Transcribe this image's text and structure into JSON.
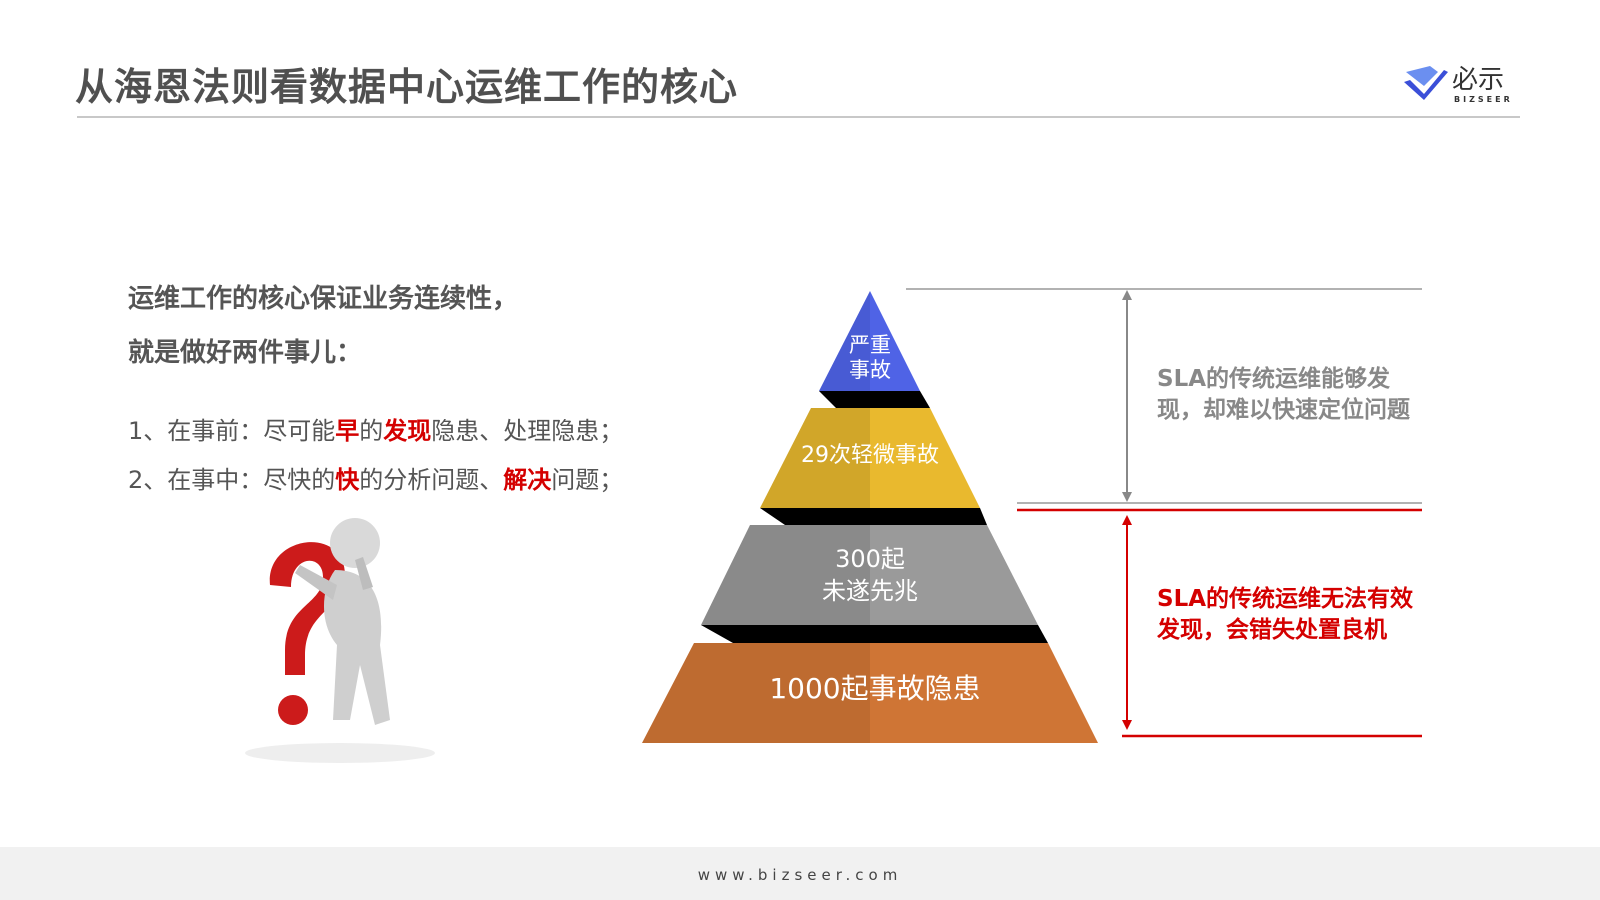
{
  "header": {
    "title": "从海恩法则看数据中心运维工作的核心",
    "logo_text": "必示",
    "logo_sub": "BIZSEER"
  },
  "left": {
    "lead_lines": [
      "运维工作的核心保证业务连续性，",
      "就是做好两件事儿："
    ],
    "items": [
      [
        {
          "t": "1、在事前：尽可能",
          "h": false
        },
        {
          "t": "早",
          "h": true
        },
        {
          "t": "的",
          "h": false
        },
        {
          "t": "发现",
          "h": true
        },
        {
          "t": "隐患、处理隐患；",
          "h": false
        }
      ],
      [
        {
          "t": "2、在事中：尽快的",
          "h": false
        },
        {
          "t": "快",
          "h": true
        },
        {
          "t": "的分析问题、",
          "h": false
        },
        {
          "t": "解决",
          "h": true
        },
        {
          "t": "问题；",
          "h": false
        }
      ]
    ]
  },
  "pyramid": {
    "tiers": [
      {
        "lines": [
          "严重",
          "事故"
        ],
        "color": "#4f63e6"
      },
      {
        "lines": [
          "29次轻微事故"
        ],
        "color": "#e9b92e"
      },
      {
        "lines": [
          "300起",
          "未遂先兆"
        ],
        "color": "#9a9a9a"
      },
      {
        "lines": [
          "1000起事故隐患"
        ],
        "color": "#cf7535"
      }
    ]
  },
  "notes": {
    "upper": {
      "text": "SLA的传统运维能够发现，却难以快速定位问题",
      "color": "#888888"
    },
    "lower": {
      "text": "SLA的传统运维无法有效发现，会错失处置良机",
      "color": "#d40000"
    }
  },
  "footer": {
    "url": "www.bizseer.com"
  }
}
